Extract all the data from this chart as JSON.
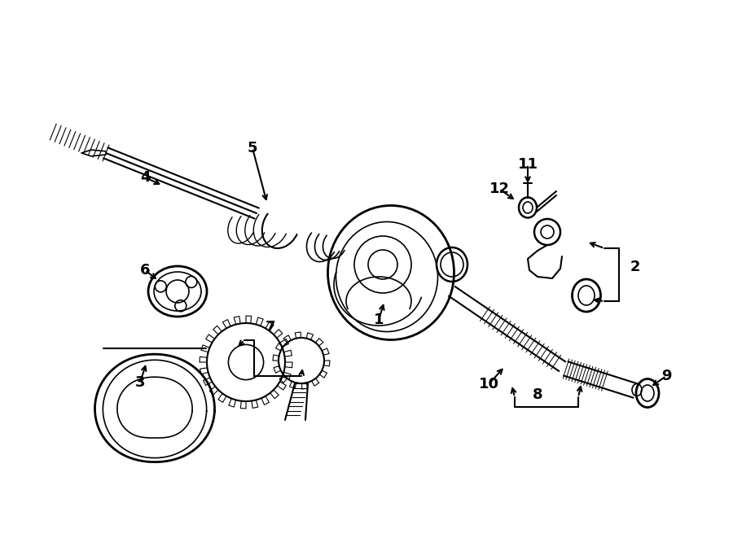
{
  "bg_color": "#ffffff",
  "line_color": "#000000",
  "fig_width": 9.0,
  "fig_height": 6.61,
  "dpi": 100,
  "imgW": 900,
  "imgH": 661
}
